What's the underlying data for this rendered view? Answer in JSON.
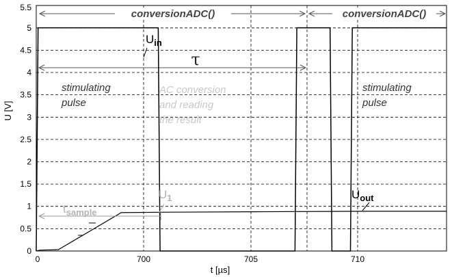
{
  "chart_data": {
    "type": "line",
    "xlabel": "t [µs]",
    "ylabel": "U [V]",
    "x_ticks": [
      "0",
      "700",
      "705",
      "710"
    ],
    "y_ticks": [
      "0",
      "0.5",
      "1",
      "1.5",
      "2",
      "2.5",
      "3",
      "3.5",
      "4",
      "4.5",
      "5",
      "5.5"
    ],
    "ylim": [
      0,
      5.5
    ],
    "grid": true,
    "series": [
      {
        "name": "U_in",
        "color": "#000000",
        "points": [
          [
            0,
            0
          ],
          [
            0.05,
            5
          ],
          [
            3.3,
            5
          ],
          [
            3.35,
            0
          ],
          [
            7.0,
            0
          ],
          [
            7.05,
            5
          ],
          [
            7.95,
            5
          ],
          [
            8.0,
            0
          ],
          [
            8.5,
            0
          ],
          [
            8.55,
            5
          ],
          [
            11.1,
            5
          ]
        ]
      },
      {
        "name": "U_out",
        "color": "#000000",
        "points": [
          [
            0,
            0
          ],
          [
            0.1,
            0.02
          ],
          [
            0.6,
            0.03
          ],
          [
            2.3,
            0.86
          ],
          [
            3.6,
            0.87
          ],
          [
            5.9,
            0.88
          ],
          [
            9.0,
            0.89
          ],
          [
            11.1,
            0.89
          ]
        ]
      }
    ],
    "annotations": {
      "conv1": "conversionADC()",
      "conv2": "conversionADC()",
      "tau": "τ",
      "uin_main": "U",
      "uin_sub": "in",
      "uout_main": "U",
      "uout_sub": "out",
      "u1_main": "U",
      "u1_sub": "1",
      "tsample_main": "t",
      "tsample_sub": "sample",
      "stim1_line1": "stimulating",
      "stim1_line2": "pulse",
      "stim2_line1": "stimulating",
      "stim2_line2": "pulse",
      "ac_line1": "AC conversion",
      "ac_line2": "and reading",
      "ac_line3": "the result"
    }
  }
}
